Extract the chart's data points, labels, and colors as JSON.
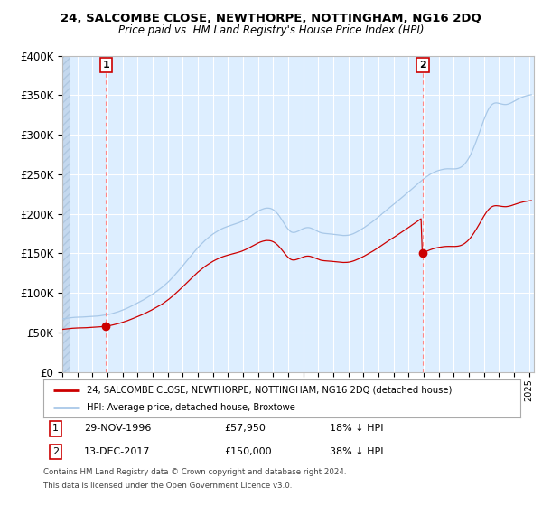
{
  "title": "24, SALCOMBE CLOSE, NEWTHORPE, NOTTINGHAM, NG16 2DQ",
  "subtitle": "Price paid vs. HM Land Registry's House Price Index (HPI)",
  "legend_line1": "24, SALCOMBE CLOSE, NEWTHORPE, NOTTINGHAM, NG16 2DQ (detached house)",
  "legend_line2": "HPI: Average price, detached house, Broxtowe",
  "sale1_price": 57950,
  "sale2_price": 150000,
  "sale1_year": 1996,
  "sale1_month": 11,
  "sale1_day": 29,
  "sale2_year": 2017,
  "sale2_month": 12,
  "sale2_day": 13,
  "footer_line1": "Contains HM Land Registry data © Crown copyright and database right 2024.",
  "footer_line2": "This data is licensed under the Open Government Licence v3.0.",
  "hpi_color": "#a8c8e8",
  "price_color": "#cc0000",
  "vline_color": "#ff8888",
  "bg_color": "#ddeeff",
  "grid_color": "#ffffff",
  "ylim_max": 400000,
  "start_year": 1994,
  "end_year": 2025,
  "table_date1": "29-NOV-1996",
  "table_price1": "£57,950",
  "table_pct1": "18% ↓ HPI",
  "table_date2": "13-DEC-2017",
  "table_price2": "£150,000",
  "table_pct2": "38% ↓ HPI"
}
